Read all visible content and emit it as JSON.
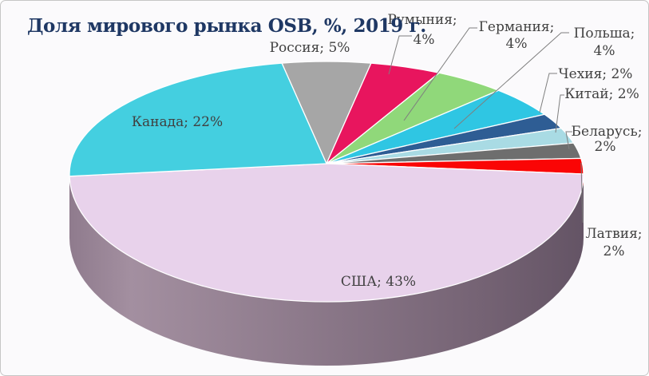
{
  "window": {
    "background_color": "#fbfafc",
    "border_color": "#c6c6c6"
  },
  "chart_data": {
    "type": "pie",
    "style": "3d-pie",
    "title": "Доля мирового рынка OSB, %, 2019 г.",
    "title_color": "#1f3864",
    "unit": "%",
    "legend": "none",
    "label_color": "#404040",
    "leader_line_color": "#7f7f7f",
    "start_angle_deg": -10,
    "slices": [
      {
        "name": "Россия",
        "value": 5,
        "color": "#a6a6a6",
        "label": "Россия; 5%",
        "label_lines": [
          "Россия; 5%"
        ]
      },
      {
        "name": "Румыния",
        "value": 4,
        "color": "#e8155e",
        "label": "Румыния; 4%",
        "label_lines": [
          "Румыния;",
          "4%"
        ]
      },
      {
        "name": "Германия",
        "value": 4,
        "color": "#90d87a",
        "label": "Германия; 4%",
        "label_lines": [
          "Германия;",
          "4%"
        ]
      },
      {
        "name": "Польша",
        "value": 4,
        "color": "#2fc6e3",
        "label": "Польша; 4%",
        "label_lines": [
          "Польша;",
          "4%"
        ]
      },
      {
        "name": "Чехия",
        "value": 2,
        "color": "#2e5d94",
        "label": "Чехия; 2%",
        "label_lines": [
          "Чехия; 2%"
        ]
      },
      {
        "name": "Китай",
        "value": 2,
        "color": "#a9dbe4",
        "label": "Китай; 2%",
        "label_lines": [
          "Китай; 2%"
        ]
      },
      {
        "name": "Беларусь",
        "value": 2,
        "color": "#6e6e6e",
        "label": "Беларусь; 2%",
        "label_lines": [
          "Беларусь;",
          "2%"
        ]
      },
      {
        "name": "Латвия",
        "value": 2,
        "color": "#fa0505",
        "label": "Латвия; 2%",
        "label_lines": [
          "Латвия;",
          "2%"
        ]
      },
      {
        "name": "США",
        "value": 43,
        "color": "#e8d2eb",
        "label": "США; 43%",
        "label_lines": [
          "США; 43%"
        ]
      },
      {
        "name": "Канада",
        "value": 22,
        "color": "#44cfe0",
        "label": "Канада; 22%",
        "label_lines": [
          "Канада; 22%"
        ]
      }
    ]
  }
}
